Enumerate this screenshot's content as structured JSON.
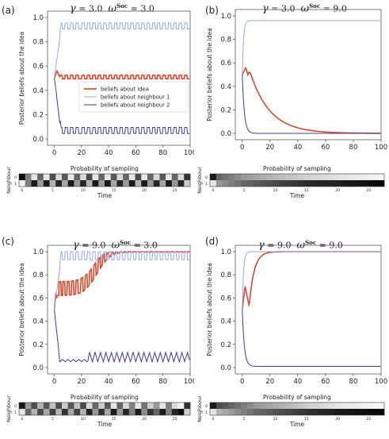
{
  "colors": {
    "idea": "#e0472a",
    "n1": "#8fa8f0",
    "n2": "#3b3c9e"
  },
  "common": {
    "ylabel": "Posterior beliefs about the idea",
    "heatmap_title": "Probability of sampling",
    "heatmap_ylabel": "Neighbour",
    "heatmap_xlabel": "Time",
    "x_ticks": [
      "0",
      "20",
      "40",
      "60",
      "80",
      "100"
    ],
    "y_ticks": [
      "0.0",
      "0.2",
      "0.4",
      "0.6",
      "0.8",
      "1.0"
    ],
    "heatmap_x_ticks": [
      "0",
      "5",
      "10",
      "15",
      "20",
      "25"
    ],
    "heatmap_row_labels": [
      "0",
      "1"
    ],
    "gamma_symbol": "γ",
    "omega_symbol": "ω",
    "soc_sup": "Soc",
    "legend": [
      "beliefs about idea",
      "beliefs about neighbour 1",
      "beliefs about neighbour 2"
    ]
  },
  "panels": [
    {
      "label": "(a)",
      "gamma_text": "= 3.0",
      "omega_text": "= 3.0"
    },
    {
      "label": "(b)",
      "gamma_text": "= 3.0",
      "omega_text": "= 9.0"
    },
    {
      "label": "(c)",
      "gamma_text": "= 9.0",
      "omega_text": "= 3.0"
    },
    {
      "label": "(d)",
      "gamma_text": "= 9.0",
      "omega_text": "= 9.0"
    }
  ],
  "chart_data": [
    {
      "panel": "a",
      "type": "line",
      "xlim": [
        -5,
        100
      ],
      "ylim": [
        0.0,
        1.0
      ],
      "legend": "center-right",
      "series": [
        {
          "name": "beliefs about idea",
          "pattern": "oscillating",
          "start": 0.5,
          "early_peak": 0.56,
          "level": 0.51,
          "amplitude": 0.015
        },
        {
          "name": "beliefs about neighbour 1",
          "pattern": "oscillating",
          "start": 0.5,
          "level": 0.93,
          "amplitude": 0.025
        },
        {
          "name": "beliefs about neighbour 2",
          "pattern": "oscillating",
          "start": 0.5,
          "level": 0.07,
          "amplitude": 0.025
        }
      ]
    },
    {
      "panel": "b",
      "type": "line",
      "xlim": [
        -5,
        100
      ],
      "ylim": [
        0.0,
        1.0
      ],
      "series": [
        {
          "name": "beliefs about idea",
          "pattern": "peak-then-decay",
          "start": 0.5,
          "peak": 0.56,
          "level": 0.0,
          "decay": 0.07
        },
        {
          "name": "beliefs about neighbour 1",
          "pattern": "saturating",
          "start": 0.5,
          "level": 0.96
        },
        {
          "name": "beliefs about neighbour 2",
          "pattern": "decaying",
          "start": 0.5,
          "level": 0.0
        }
      ]
    },
    {
      "panel": "c",
      "type": "line",
      "xlim": [
        -5,
        100
      ],
      "ylim": [
        0.0,
        1.0
      ],
      "series": [
        {
          "name": "beliefs about idea",
          "pattern": "oscillating-rise",
          "start": 0.5,
          "level_early": 0.68,
          "level": 1.0,
          "amplitude": 0.06
        },
        {
          "name": "beliefs about neighbour 1",
          "pattern": "oscillating",
          "start": 0.5,
          "level": 0.965,
          "amplitude": 0.035
        },
        {
          "name": "beliefs about neighbour 2",
          "pattern": "oscillating-growing",
          "start": 0.5,
          "level": 0.05,
          "amplitude": 0.08
        }
      ]
    },
    {
      "panel": "d",
      "type": "line",
      "xlim": [
        -5,
        100
      ],
      "ylim": [
        0.0,
        1.0
      ],
      "series": [
        {
          "name": "beliefs about idea",
          "pattern": "dip-then-rise",
          "start": 0.5,
          "peak": 0.7,
          "dip": 0.53,
          "level": 1.0
        },
        {
          "name": "beliefs about neighbour 1",
          "pattern": "saturating",
          "start": 0.5,
          "level": 1.0
        },
        {
          "name": "beliefs about neighbour 2",
          "pattern": "decaying",
          "start": 0.5,
          "level": 0.01
        }
      ]
    },
    {
      "panel": "a",
      "type": "heatmap",
      "cells": 28,
      "rows": [
        [
          0.05,
          0.5,
          0.9,
          0.4,
          0.9,
          0.3,
          0.85,
          0.35,
          0.9,
          0.4,
          0.85,
          0.3,
          0.9,
          0.4,
          0.9,
          0.35,
          0.85,
          0.4,
          0.9,
          0.3,
          0.9,
          0.4,
          0.85,
          0.35,
          0.9,
          0.4,
          0.85,
          0.2
        ],
        [
          0.95,
          0.5,
          0.1,
          0.6,
          0.1,
          0.7,
          0.15,
          0.65,
          0.1,
          0.6,
          0.15,
          0.7,
          0.1,
          0.6,
          0.1,
          0.65,
          0.15,
          0.6,
          0.1,
          0.7,
          0.1,
          0.6,
          0.15,
          0.65,
          0.1,
          0.6,
          0.15,
          0.8
        ]
      ]
    },
    {
      "panel": "b",
      "type": "heatmap",
      "cells": 28,
      "rows": [
        [
          0.1,
          0.4,
          0.45,
          0.5,
          0.55,
          0.6,
          0.62,
          0.65,
          0.68,
          0.7,
          0.72,
          0.74,
          0.76,
          0.78,
          0.8,
          0.82,
          0.84,
          0.85,
          0.86,
          0.87,
          0.88,
          0.9,
          0.91,
          0.92,
          0.93,
          0.94,
          0.95,
          0.97
        ],
        [
          0.9,
          0.6,
          0.55,
          0.5,
          0.45,
          0.4,
          0.38,
          0.35,
          0.32,
          0.3,
          0.28,
          0.26,
          0.24,
          0.22,
          0.2,
          0.18,
          0.16,
          0.15,
          0.14,
          0.13,
          0.12,
          0.1,
          0.09,
          0.08,
          0.07,
          0.06,
          0.05,
          0.03
        ]
      ]
    },
    {
      "panel": "c",
      "type": "heatmap",
      "cells": 28,
      "rows": [
        [
          0.1,
          0.6,
          0.3,
          0.7,
          0.35,
          0.75,
          0.3,
          0.8,
          0.35,
          0.75,
          0.3,
          0.85,
          0.4,
          0.8,
          0.35,
          0.9,
          0.4,
          0.85,
          0.5,
          0.9,
          0.45,
          0.8,
          0.6,
          0.9,
          0.5,
          0.85,
          0.95,
          0.2
        ],
        [
          0.9,
          0.4,
          0.7,
          0.3,
          0.65,
          0.25,
          0.7,
          0.2,
          0.65,
          0.25,
          0.7,
          0.15,
          0.6,
          0.2,
          0.65,
          0.1,
          0.6,
          0.15,
          0.5,
          0.1,
          0.55,
          0.2,
          0.4,
          0.1,
          0.5,
          0.15,
          0.05,
          0.8
        ]
      ]
    },
    {
      "panel": "d",
      "type": "heatmap",
      "cells": 28,
      "rows": [
        [
          0.1,
          0.3,
          0.35,
          0.4,
          0.45,
          0.5,
          0.55,
          0.6,
          0.62,
          0.65,
          0.68,
          0.7,
          0.72,
          0.75,
          0.78,
          0.8,
          0.82,
          0.84,
          0.86,
          0.88,
          0.9,
          0.91,
          0.92,
          0.93,
          0.94,
          0.95,
          0.96,
          0.97
        ],
        [
          0.9,
          0.7,
          0.65,
          0.6,
          0.55,
          0.5,
          0.45,
          0.4,
          0.38,
          0.35,
          0.32,
          0.3,
          0.28,
          0.25,
          0.22,
          0.2,
          0.18,
          0.16,
          0.14,
          0.12,
          0.1,
          0.09,
          0.08,
          0.07,
          0.06,
          0.05,
          0.04,
          0.03
        ]
      ]
    }
  ]
}
